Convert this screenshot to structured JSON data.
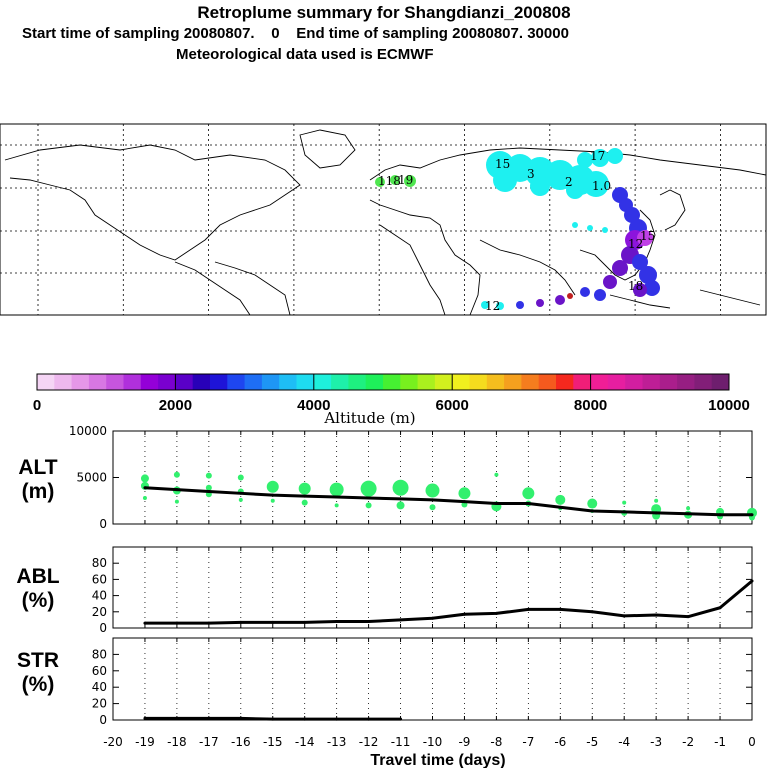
{
  "header": {
    "title": "Retroplume summary for Shangdianzi_200808",
    "subtitle": "Start time of sampling 20080807.    0    End time of sampling 20080807. 30000",
    "met_line": "Meteorological data used is ECMWF"
  },
  "colorbar": {
    "ticks": [
      "0",
      "2000",
      "4000",
      "6000",
      "8000",
      "10000"
    ],
    "label": "Altitude (m)",
    "colors": [
      "#f5d5f5",
      "#eeb8ee",
      "#e597e8",
      "#d877e3",
      "#c655de",
      "#b030dc",
      "#9400d8",
      "#7a00d0",
      "#5a00c8",
      "#2800b8",
      "#1e14d8",
      "#1e46f0",
      "#1e6ef5",
      "#1e96f5",
      "#1ebef5",
      "#1edcf0",
      "#1ef0dc",
      "#1ef0aa",
      "#1ef080",
      "#1ef05a",
      "#46f032",
      "#78f01e",
      "#aaf01e",
      "#d2f01e",
      "#f0f01e",
      "#f5dc1e",
      "#f5be1e",
      "#f5a01e",
      "#f57d1e",
      "#f55a1e",
      "#f5281e",
      "#f01e78",
      "#f01e96",
      "#e61ea0",
      "#d21ea0",
      "#be1e96",
      "#aa1e8c",
      "#961e82",
      "#821e78",
      "#6e1e6e"
    ]
  },
  "map": {
    "labels": [
      "118",
      "19",
      "15",
      "3",
      "2",
      "1.0",
      "17",
      "12",
      "18",
      "12",
      "15"
    ]
  },
  "chart_data": [
    {
      "type": "line",
      "panel": "ALT",
      "ylabel": "ALT\n(m)",
      "ylim": [
        0,
        10000
      ],
      "yticks": [
        "10000",
        "5000",
        "0"
      ],
      "x": [
        -19,
        -18,
        -17,
        -16,
        -15,
        -14,
        -13,
        -12,
        -11,
        -10,
        -9,
        -8,
        -7,
        -6,
        -5,
        -4,
        -3,
        -2,
        -1,
        0
      ],
      "values": [
        3900,
        3700,
        3500,
        3300,
        3100,
        3000,
        2900,
        2800,
        2700,
        2600,
        2400,
        2200,
        2200,
        1800,
        1400,
        1300,
        1200,
        1100,
        1000,
        1000
      ],
      "scatter": [
        {
          "x": -19,
          "y": 4900,
          "r": 4
        },
        {
          "x": -19,
          "y": 4100,
          "r": 4
        },
        {
          "x": -19,
          "y": 2800,
          "r": 2
        },
        {
          "x": -18,
          "y": 5300,
          "r": 3
        },
        {
          "x": -18,
          "y": 3600,
          "r": 4
        },
        {
          "x": -18,
          "y": 2400,
          "r": 2
        },
        {
          "x": -17,
          "y": 5200,
          "r": 3
        },
        {
          "x": -17,
          "y": 3900,
          "r": 3
        },
        {
          "x": -17,
          "y": 3200,
          "r": 3
        },
        {
          "x": -16,
          "y": 5000,
          "r": 3
        },
        {
          "x": -16,
          "y": 3500,
          "r": 3
        },
        {
          "x": -16,
          "y": 2600,
          "r": 2
        },
        {
          "x": -15,
          "y": 4000,
          "r": 6
        },
        {
          "x": -15,
          "y": 2500,
          "r": 2
        },
        {
          "x": -14,
          "y": 3800,
          "r": 6
        },
        {
          "x": -14,
          "y": 2300,
          "r": 3
        },
        {
          "x": -13,
          "y": 3700,
          "r": 7
        },
        {
          "x": -13,
          "y": 2000,
          "r": 2
        },
        {
          "x": -12,
          "y": 3800,
          "r": 8
        },
        {
          "x": -12,
          "y": 2000,
          "r": 3
        },
        {
          "x": -11,
          "y": 3900,
          "r": 8
        },
        {
          "x": -11,
          "y": 2000,
          "r": 4
        },
        {
          "x": -10,
          "y": 3600,
          "r": 7
        },
        {
          "x": -10,
          "y": 1800,
          "r": 3
        },
        {
          "x": -9,
          "y": 3300,
          "r": 6
        },
        {
          "x": -9,
          "y": 2100,
          "r": 3
        },
        {
          "x": -8,
          "y": 5300,
          "r": 2
        },
        {
          "x": -8,
          "y": 1900,
          "r": 5
        },
        {
          "x": -7,
          "y": 3300,
          "r": 6
        },
        {
          "x": -7,
          "y": 2200,
          "r": 3
        },
        {
          "x": -6,
          "y": 2600,
          "r": 5
        },
        {
          "x": -6,
          "y": 1700,
          "r": 2
        },
        {
          "x": -5,
          "y": 2200,
          "r": 5
        },
        {
          "x": -5,
          "y": 1400,
          "r": 2
        },
        {
          "x": -4,
          "y": 2300,
          "r": 2
        },
        {
          "x": -4,
          "y": 1200,
          "r": 3
        },
        {
          "x": -3,
          "y": 2500,
          "r": 2
        },
        {
          "x": -3,
          "y": 1600,
          "r": 5
        },
        {
          "x": -3,
          "y": 900,
          "r": 4
        },
        {
          "x": -2,
          "y": 1700,
          "r": 2
        },
        {
          "x": -2,
          "y": 1000,
          "r": 4
        },
        {
          "x": -1,
          "y": 1300,
          "r": 4
        },
        {
          "x": -1,
          "y": 800,
          "r": 3
        },
        {
          "x": 0,
          "y": 1200,
          "r": 5
        },
        {
          "x": 0,
          "y": 700,
          "r": 3
        }
      ]
    },
    {
      "type": "line",
      "panel": "ABL",
      "ylabel": "ABL\n(%)",
      "ylim": [
        0,
        100
      ],
      "yticks": [
        "80",
        "60",
        "40",
        "20",
        "0"
      ],
      "x": [
        -19,
        -18,
        -17,
        -16,
        -15,
        -14,
        -13,
        -12,
        -11,
        -10,
        -9,
        -8,
        -7,
        -6,
        -5,
        -4,
        -3,
        -2,
        -1,
        0
      ],
      "values": [
        6,
        6,
        6,
        7,
        7,
        7,
        8,
        8,
        10,
        12,
        17,
        18,
        23,
        23,
        20,
        15,
        16,
        14,
        25,
        58
      ]
    },
    {
      "type": "line",
      "panel": "STR",
      "ylabel": "STR\n(%)",
      "ylim": [
        0,
        100
      ],
      "yticks": [
        "80",
        "60",
        "40",
        "20",
        "0"
      ],
      "x": [
        -19,
        -18,
        -17,
        -16,
        -15,
        -14,
        -13,
        -12,
        -11
      ],
      "values": [
        2,
        2,
        2,
        2,
        1,
        1,
        1,
        1,
        1
      ]
    }
  ],
  "xaxis": {
    "ticks": [
      "-20",
      "-19",
      "-18",
      "-17",
      "-16",
      "-15",
      "-14",
      "-13",
      "-12",
      "-11",
      "-10",
      "-9",
      "-8",
      "-7",
      "-6",
      "-5",
      "-4",
      "-3",
      "-2",
      "-1",
      "0"
    ],
    "label": "Travel time (days)"
  }
}
